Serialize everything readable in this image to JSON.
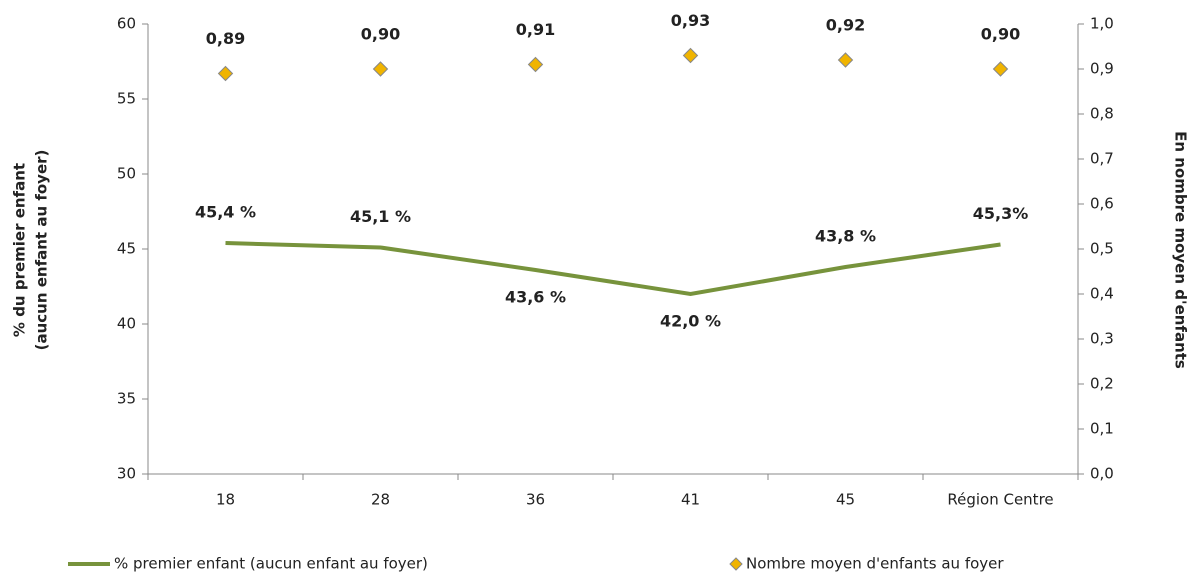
{
  "chart_data": {
    "type": "line",
    "categories": [
      "18",
      "28",
      "36",
      "41",
      "45",
      "Région Centre"
    ],
    "y_label": [
      "% du premier enfant",
      "(aucun enfant au foyer)"
    ],
    "y2_label": "En nombre moyen d'enfants",
    "ylim": [
      30,
      60
    ],
    "yticks": [
      30,
      35,
      40,
      45,
      50,
      55,
      60
    ],
    "y2lim": [
      0,
      1
    ],
    "y2ticks": [
      {
        "value": 0,
        "label": "0,0"
      },
      {
        "value": 0.1,
        "label": "0,1"
      },
      {
        "value": 0.2,
        "label": "0,2"
      },
      {
        "value": 0.3,
        "label": "0,3"
      },
      {
        "value": 0.4,
        "label": "0,4"
      },
      {
        "value": 0.5,
        "label": "0,5"
      },
      {
        "value": 0.6,
        "label": "0,6"
      },
      {
        "value": 0.7,
        "label": "0,7"
      },
      {
        "value": 0.8,
        "label": "0,8"
      },
      {
        "value": 0.9,
        "label": "0,9"
      },
      {
        "value": 1,
        "label": "1,0"
      }
    ],
    "series": [
      {
        "name": "% premier enfant (aucun enfant au foyer)",
        "color": "#77933c",
        "type": "line",
        "values": [
          45.4,
          45.1,
          43.6,
          42.0,
          43.8,
          45.3
        ],
        "value_labels": [
          "45,4 %",
          "45,1 %",
          "43,6 %",
          "42,0 %",
          "43,8 %",
          "45,3%"
        ]
      },
      {
        "name": "Nombre moyen d'enfants au foyer",
        "color": "#f0b400",
        "label_color": "#f5b800",
        "type": "scatter",
        "axis": "y2",
        "values": [
          0.89,
          0.9,
          0.91,
          0.93,
          0.92,
          0.9
        ],
        "value_labels": [
          "0,89",
          "0,90",
          "0,91",
          "0,93",
          "0,92",
          "0,90"
        ]
      }
    ],
    "legend": "bottom"
  }
}
